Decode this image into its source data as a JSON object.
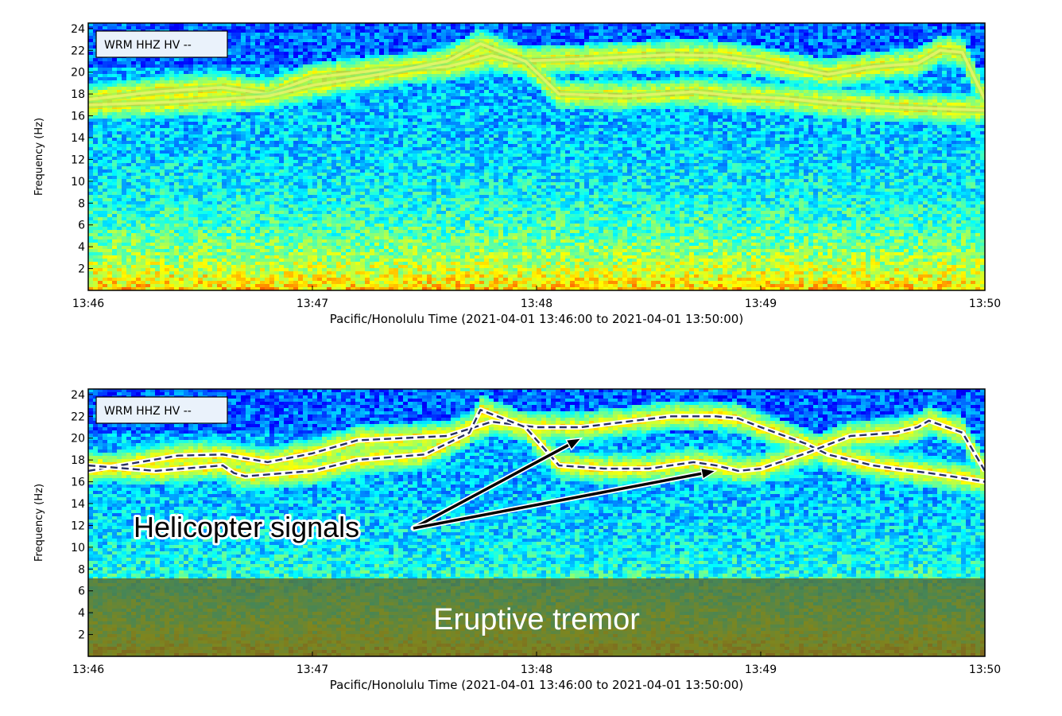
{
  "chart_data": [
    {
      "type": "heatmap",
      "station_label": "WRM HHZ HV --",
      "xlabel": "Pacific/Honolulu Time (2021-04-01 13:46:00 to 2021-04-01 13:50:00)",
      "ylabel": "Frequency (Hz)",
      "x_ticks": [
        "13:46",
        "13:47",
        "13:48",
        "13:49",
        "13:50"
      ],
      "y_ticks": [
        2,
        4,
        6,
        8,
        10,
        12,
        14,
        16,
        18,
        20,
        22,
        24
      ],
      "xlim_minutes": [
        0,
        4
      ],
      "ylim_hz": [
        0,
        24.5
      ],
      "colormap": "jet",
      "signal_tracks_hz": [
        {
          "x": [
            0,
            0.3,
            0.6,
            0.8,
            1.0,
            1.3,
            1.6,
            1.8,
            1.9,
            2.2,
            2.6,
            2.8,
            3.0,
            3.2,
            3.3,
            3.5,
            3.7,
            3.8,
            3.9,
            4.0
          ],
          "y": [
            17.5,
            18.2,
            18.6,
            18.0,
            19.5,
            20.2,
            20.5,
            21.5,
            21.0,
            21.2,
            21.6,
            21.5,
            21.0,
            20.2,
            19.8,
            20.5,
            20.8,
            22.0,
            21.8,
            17.5
          ]
        },
        {
          "x": [
            0,
            0.3,
            0.5,
            0.8,
            1.0,
            1.3,
            1.6,
            1.75,
            1.95,
            2.1,
            2.4,
            2.7,
            2.9,
            3.1,
            3.3,
            3.6,
            4.0
          ],
          "y": [
            17.0,
            17.2,
            17.4,
            17.8,
            18.8,
            19.8,
            21.0,
            22.6,
            21.0,
            18.0,
            17.8,
            18.2,
            17.8,
            17.6,
            17.2,
            16.8,
            16.5
          ]
        }
      ]
    },
    {
      "type": "heatmap",
      "station_label": "WRM HHZ HV --",
      "xlabel": "Pacific/Honolulu Time (2021-04-01 13:46:00 to 2021-04-01 13:50:00)",
      "ylabel": "Frequency (Hz)",
      "x_ticks": [
        "13:46",
        "13:47",
        "13:48",
        "13:49",
        "13:50"
      ],
      "y_ticks": [
        2,
        4,
        6,
        8,
        10,
        12,
        14,
        16,
        18,
        20,
        22,
        24
      ],
      "xlim_minutes": [
        0,
        4
      ],
      "ylim_hz": [
        0,
        24.5
      ],
      "colormap": "jet",
      "shaded_band_hz": [
        0,
        7.8
      ],
      "annotations": {
        "helicopter_label": "Helicopter signals",
        "tremor_label": "Eruptive tremor"
      },
      "arrow_targets": [
        {
          "minute": 2.2,
          "hz": 20.0
        },
        {
          "minute": 2.8,
          "hz": 17.0
        }
      ],
      "traced_tracks_hz": [
        {
          "x": [
            0,
            0.4,
            0.6,
            0.8,
            1.0,
            1.2,
            1.6,
            1.8,
            2.0,
            2.2,
            2.4,
            2.6,
            2.8,
            2.9,
            3.0,
            3.2,
            3.3,
            3.5,
            3.6,
            3.75,
            3.85,
            4.0
          ],
          "y": [
            17.0,
            18.4,
            18.5,
            17.8,
            18.6,
            19.8,
            20.2,
            21.5,
            21.0,
            21.0,
            21.5,
            22.0,
            22.0,
            21.8,
            21.0,
            19.5,
            18.5,
            17.5,
            17.2,
            16.8,
            16.5,
            16.0
          ]
        },
        {
          "x": [
            0,
            0.3,
            0.6,
            0.65,
            0.7,
            1.0,
            1.2,
            1.5,
            1.7,
            1.75,
            1.95,
            2.1,
            2.3,
            2.5,
            2.7,
            2.8,
            2.9,
            3.0,
            3.2,
            3.4,
            3.6,
            3.7,
            3.75,
            3.9,
            4.0
          ],
          "y": [
            17.5,
            17.0,
            17.5,
            16.8,
            16.5,
            17.0,
            18.0,
            18.5,
            20.5,
            22.6,
            21.0,
            17.5,
            17.2,
            17.2,
            17.8,
            17.5,
            17.0,
            17.2,
            18.6,
            20.2,
            20.5,
            21.0,
            21.6,
            20.5,
            17.0
          ]
        }
      ]
    }
  ]
}
